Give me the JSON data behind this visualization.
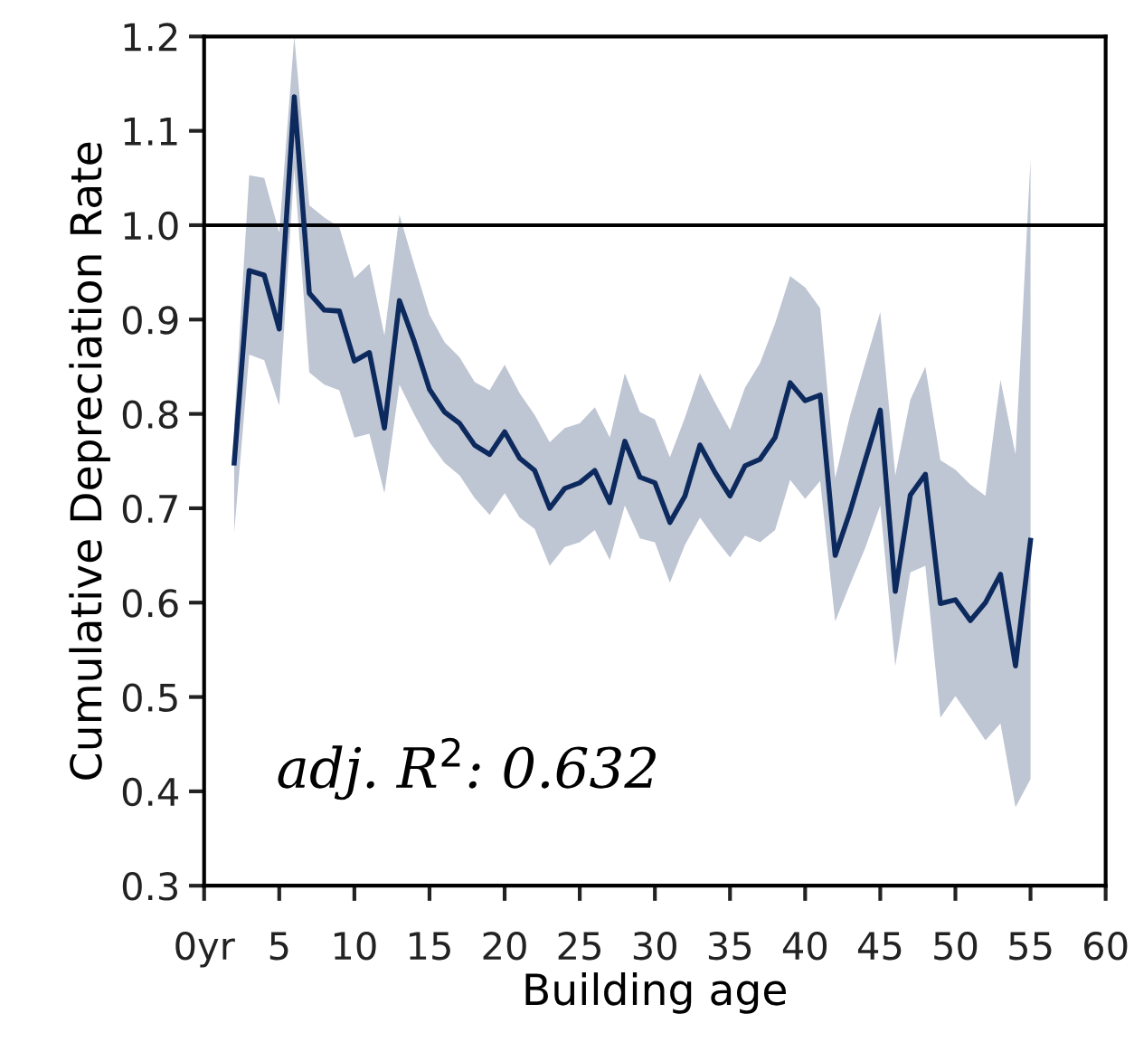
{
  "chart_data": {
    "type": "line",
    "xlabel": "Building age",
    "ylabel": "Cumulative Depreciation Rate",
    "x": [
      2,
      3,
      4,
      5,
      6,
      7,
      8,
      9,
      10,
      11,
      12,
      13,
      14,
      15,
      16,
      17,
      18,
      19,
      20,
      21,
      22,
      23,
      24,
      25,
      26,
      27,
      28,
      29,
      30,
      31,
      32,
      33,
      34,
      35,
      36,
      37,
      38,
      39,
      40,
      41,
      42,
      43,
      44,
      45,
      46,
      47,
      48,
      49,
      50,
      51,
      52,
      53,
      54,
      55
    ],
    "series": [
      {
        "color": "#0d2a5e",
        "values": [
          0.748,
          0.952,
          0.947,
          0.89,
          1.136,
          0.928,
          0.91,
          0.909,
          0.856,
          0.865,
          0.785,
          0.92,
          0.876,
          0.826,
          0.802,
          0.79,
          0.767,
          0.757,
          0.781,
          0.753,
          0.74,
          0.7,
          0.721,
          0.727,
          0.74,
          0.706,
          0.771,
          0.733,
          0.727,
          0.685,
          0.713,
          0.767,
          0.738,
          0.713,
          0.745,
          0.752,
          0.775,
          0.833,
          0.814,
          0.82,
          0.65,
          0.697,
          0.751,
          0.804,
          0.612,
          0.714,
          0.736,
          0.599,
          0.603,
          0.581,
          0.6,
          0.63,
          0.533,
          0.666
        ],
        "upper": [
          0.79,
          1.053,
          1.05,
          0.992,
          1.2,
          1.021,
          1.008,
          0.998,
          0.944,
          0.959,
          0.883,
          1.011,
          0.957,
          0.905,
          0.876,
          0.86,
          0.834,
          0.825,
          0.852,
          0.822,
          0.799,
          0.77,
          0.785,
          0.79,
          0.807,
          0.775,
          0.843,
          0.802,
          0.794,
          0.754,
          0.796,
          0.843,
          0.812,
          0.783,
          0.828,
          0.854,
          0.896,
          0.946,
          0.934,
          0.912,
          0.732,
          0.799,
          0.854,
          0.908,
          0.735,
          0.815,
          0.85,
          0.751,
          0.741,
          0.725,
          0.713,
          0.836,
          0.757,
          1.07
        ],
        "lower": [
          0.674,
          0.863,
          0.857,
          0.809,
          1.06,
          0.844,
          0.831,
          0.825,
          0.775,
          0.779,
          0.716,
          0.831,
          0.799,
          0.77,
          0.748,
          0.735,
          0.711,
          0.693,
          0.716,
          0.69,
          0.678,
          0.639,
          0.659,
          0.664,
          0.677,
          0.645,
          0.703,
          0.668,
          0.664,
          0.621,
          0.661,
          0.69,
          0.668,
          0.648,
          0.671,
          0.664,
          0.677,
          0.73,
          0.71,
          0.729,
          0.58,
          0.62,
          0.658,
          0.703,
          0.533,
          0.632,
          0.639,
          0.478,
          0.501,
          0.478,
          0.454,
          0.472,
          0.383,
          0.413
        ]
      }
    ],
    "xlim": [
      0,
      60
    ],
    "xticks": [
      {
        "value": 0,
        "label": "0yr"
      },
      5,
      10,
      15,
      20,
      25,
      30,
      35,
      40,
      45,
      50,
      55,
      60
    ],
    "ylim": [
      0.3,
      1.2
    ],
    "yticks": [
      0.3,
      0.4,
      0.5,
      0.6,
      0.7,
      0.8,
      0.9,
      {
        "value": 1.0,
        "label": "1.0"
      },
      1.1,
      1.2
    ],
    "ref_lines": [
      {
        "axis": "y",
        "value": 1.0,
        "color": "#000000",
        "line_style": "solid"
      }
    ],
    "annotations": [
      "adj. R$^{2}$: 0.632"
    ],
    "grid": false,
    "legend": false,
    "marker": "none",
    "line_style": "solid"
  }
}
